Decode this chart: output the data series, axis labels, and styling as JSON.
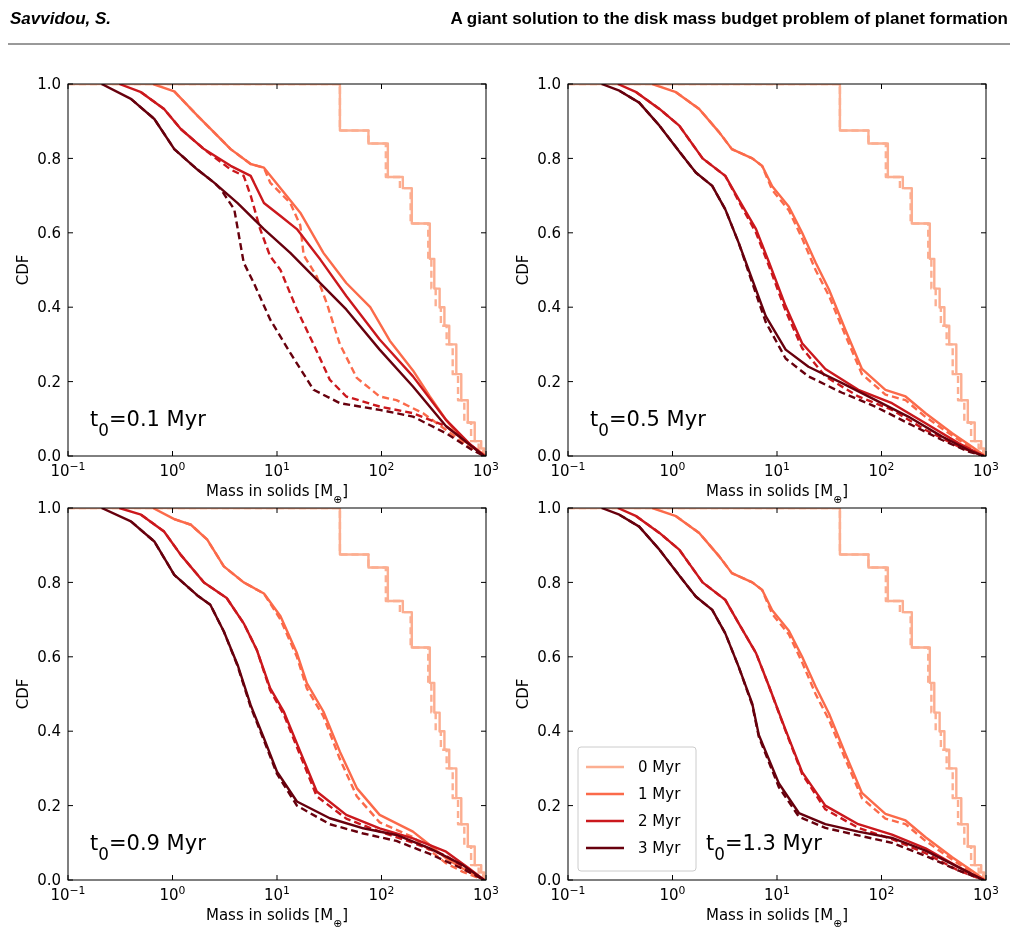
{
  "chart_data": [
    {
      "type": "other",
      "title": "A giant solution to the disk mass budget problem of planet formation",
      "subtitle": "Savvidou, S."
    },
    {
      "type": "line",
      "xlabel": "Mass in solids [M$_{⊕}$]",
      "ylabel": "CDF",
      "log": "x",
      "xlim": [
        0.1,
        1000
      ],
      "ylim": [
        0,
        1
      ],
      "xticks": [
        {
          "value": 0.1,
          "label": "10$^{−1}$"
        },
        {
          "value": 1,
          "label": "10$^{0}$"
        },
        {
          "value": 10,
          "label": "10$^{1}$"
        },
        {
          "value": 100,
          "label": "10$^{2}$"
        },
        {
          "value": 1000,
          "label": "10$^{3}$"
        }
      ],
      "yticks": [
        {
          "value": 0,
          "label": "0.0"
        },
        {
          "value": 0.2,
          "label": "0.2"
        },
        {
          "value": 0.4,
          "label": "0.4"
        },
        {
          "value": 0.6,
          "label": "0.6"
        },
        {
          "value": 0.8,
          "label": "0.8"
        },
        {
          "value": 1,
          "label": "1.0"
        }
      ],
      "annotations": [
        "t$_{0}$=0.1 Myr"
      ],
      "series": [
        {
          "type": "step",
          "color": "#fcae91",
          "line_style": "solid",
          "x": [
            0.1,
            40,
            75,
            115,
            160,
            195,
            290,
            320,
            360,
            400,
            445,
            520,
            580,
            670,
            780,
            900,
            960
          ],
          "values": [
            1,
            0.875,
            0.84,
            0.75,
            0.72,
            0.625,
            0.53,
            0.45,
            0.4,
            0.35,
            0.3,
            0.22,
            0.15,
            0.09,
            0.04,
            0.02,
            0
          ]
        },
        {
          "type": "step",
          "color": "#fcae91",
          "line_style": "dashed",
          "x": [
            0.1,
            40,
            75,
            110,
            150,
            190,
            280,
            300,
            330,
            370,
            420,
            480,
            540,
            620,
            720,
            850,
            940
          ],
          "values": [
            1,
            0.875,
            0.84,
            0.75,
            0.72,
            0.625,
            0.53,
            0.45,
            0.4,
            0.35,
            0.3,
            0.22,
            0.15,
            0.09,
            0.04,
            0.02,
            0
          ]
        },
        {
          "color": "#fb6a4a",
          "line_style": "solid",
          "x": [
            0.65,
            1.04,
            1.73,
            2.5,
            3.6,
            5.6,
            7.5,
            10.8,
            16.7,
            27.8,
            46,
            78,
            120,
            200,
            290,
            415,
            600,
            930,
            1000
          ],
          "values": [
            1,
            0.98,
            0.915,
            0.87,
            0.825,
            0.785,
            0.775,
            0.72,
            0.654,
            0.546,
            0.465,
            0.4,
            0.31,
            0.23,
            0.16,
            0.097,
            0.043,
            0.007,
            0
          ]
        },
        {
          "color": "#fb6a4a",
          "line_style": "dashed",
          "x": [
            1.04,
            1.73,
            2.5,
            3.6,
            5.6,
            7.5,
            8.6,
            13.4,
            16.7,
            18,
            24,
            30,
            40,
            58,
            96,
            139,
            250,
            415,
            690,
            960
          ],
          "values": [
            0.98,
            0.915,
            0.87,
            0.825,
            0.785,
            0.775,
            0.735,
            0.68,
            0.62,
            0.54,
            0.483,
            0.41,
            0.3,
            0.21,
            0.16,
            0.15,
            0.115,
            0.07,
            0.025,
            0
          ]
        },
        {
          "color": "#cb181d",
          "line_style": "solid",
          "x": [
            0.31,
            0.5,
            0.83,
            1.2,
            2.0,
            3.6,
            5.6,
            7.5,
            10.8,
            15.5,
            26,
            46,
            96,
            200,
            415,
            690,
            960
          ],
          "values": [
            1,
            0.978,
            0.933,
            0.879,
            0.825,
            0.78,
            0.753,
            0.68,
            0.645,
            0.61,
            0.528,
            0.43,
            0.313,
            0.214,
            0.097,
            0.034,
            0
          ]
        },
        {
          "color": "#cb181d",
          "line_style": "dashed",
          "x": [
            0.5,
            0.83,
            1.2,
            2.0,
            3.6,
            4.8,
            5.6,
            6.9,
            8.6,
            10.8,
            15.5,
            22.4,
            32,
            46,
            96,
            200,
            415,
            690,
            960
          ],
          "values": [
            0.978,
            0.933,
            0.879,
            0.825,
            0.77,
            0.753,
            0.7,
            0.61,
            0.537,
            0.5,
            0.394,
            0.3,
            0.205,
            0.16,
            0.133,
            0.115,
            0.08,
            0.034,
            0
          ]
        },
        {
          "color": "#67000d",
          "line_style": "solid",
          "x": [
            0.21,
            0.4,
            0.67,
            1.04,
            1.73,
            2.5,
            4.2,
            7.5,
            13.4,
            24,
            46,
            96,
            200,
            415,
            740,
            960
          ],
          "values": [
            1,
            0.96,
            0.906,
            0.825,
            0.77,
            0.735,
            0.68,
            0.61,
            0.546,
            0.474,
            0.394,
            0.286,
            0.187,
            0.08,
            0.025,
            0
          ]
        },
        {
          "color": "#67000d",
          "line_style": "dashed",
          "x": [
            0.4,
            0.67,
            1.04,
            1.73,
            2.5,
            2.9,
            3.9,
            4.8,
            6.0,
            8.6,
            13.4,
            22.4,
            40,
            96,
            200,
            415,
            740,
            960
          ],
          "values": [
            0.96,
            0.906,
            0.825,
            0.77,
            0.735,
            0.717,
            0.663,
            0.52,
            0.465,
            0.367,
            0.277,
            0.178,
            0.142,
            0.124,
            0.106,
            0.061,
            0.016,
            0
          ]
        }
      ]
    },
    {
      "type": "line",
      "xlabel": "Mass in solids [M$_{⊕}$]",
      "ylabel": "CDF",
      "log": "x",
      "xlim": [
        0.1,
        1000
      ],
      "ylim": [
        0,
        1
      ],
      "xticks": [
        {
          "value": 0.1,
          "label": "10$^{−1}$"
        },
        {
          "value": 1,
          "label": "10$^{0}$"
        },
        {
          "value": 10,
          "label": "10$^{1}$"
        },
        {
          "value": 100,
          "label": "10$^{2}$"
        },
        {
          "value": 1000,
          "label": "10$^{3}$"
        }
      ],
      "yticks": [
        {
          "value": 0,
          "label": "0.0"
        },
        {
          "value": 0.2,
          "label": "0.2"
        },
        {
          "value": 0.4,
          "label": "0.4"
        },
        {
          "value": 0.6,
          "label": "0.6"
        },
        {
          "value": 0.8,
          "label": "0.8"
        },
        {
          "value": 1,
          "label": "1.0"
        }
      ],
      "annotations": [
        "t$_{0}$=0.5 Myr"
      ],
      "series": [
        {
          "type": "step",
          "color": "#fcae91",
          "line_style": "solid",
          "x": [
            0.1,
            40,
            75,
            115,
            160,
            195,
            290,
            320,
            360,
            400,
            445,
            520,
            580,
            670,
            780,
            900,
            960
          ],
          "values": [
            1,
            0.875,
            0.84,
            0.75,
            0.72,
            0.625,
            0.53,
            0.45,
            0.4,
            0.35,
            0.3,
            0.22,
            0.15,
            0.09,
            0.04,
            0.02,
            0
          ]
        },
        {
          "type": "step",
          "color": "#fcae91",
          "line_style": "dashed",
          "x": [
            0.1,
            40,
            75,
            110,
            150,
            190,
            280,
            300,
            330,
            370,
            420,
            480,
            540,
            620,
            720,
            850,
            940
          ],
          "values": [
            1,
            0.875,
            0.84,
            0.75,
            0.72,
            0.625,
            0.53,
            0.45,
            0.4,
            0.35,
            0.3,
            0.22,
            0.15,
            0.09,
            0.04,
            0.02,
            0
          ]
        },
        {
          "color": "#fb6a4a",
          "line_style": "solid",
          "x": [
            0.64,
            1.08,
            1.8,
            2.8,
            3.7,
            5.8,
            7.2,
            9.0,
            13,
            17.4,
            23.4,
            31.5,
            45,
            65,
            109,
            170,
            264,
            475,
            735,
            980
          ],
          "values": [
            1,
            0.978,
            0.933,
            0.87,
            0.825,
            0.8,
            0.78,
            0.725,
            0.67,
            0.6,
            0.52,
            0.447,
            0.34,
            0.234,
            0.178,
            0.16,
            0.115,
            0.061,
            0.025,
            0
          ]
        },
        {
          "color": "#fb6a4a",
          "line_style": "dashed",
          "x": [
            1.08,
            1.8,
            2.8,
            3.7,
            5.8,
            7.2,
            9.0,
            13,
            17.4,
            23.4,
            31.5,
            45,
            65,
            109,
            170,
            264,
            475,
            735,
            980
          ],
          "values": [
            0.978,
            0.933,
            0.87,
            0.825,
            0.8,
            0.78,
            0.715,
            0.66,
            0.585,
            0.5,
            0.43,
            0.325,
            0.22,
            0.165,
            0.15,
            0.105,
            0.055,
            0.02,
            0
          ]
        },
        {
          "color": "#cb181d",
          "line_style": "solid",
          "x": [
            0.3,
            0.45,
            0.75,
            1.16,
            1.94,
            3.2,
            4.3,
            6.3,
            8.4,
            12.1,
            17.4,
            29,
            60,
            126,
            264,
            550,
            950
          ],
          "values": [
            1,
            0.978,
            0.933,
            0.888,
            0.8,
            0.753,
            0.69,
            0.61,
            0.52,
            0.403,
            0.303,
            0.234,
            0.178,
            0.142,
            0.088,
            0.034,
            0
          ]
        },
        {
          "color": "#cb181d",
          "line_style": "dashed",
          "x": [
            0.45,
            0.75,
            1.16,
            1.94,
            3.2,
            4.3,
            6.3,
            8.4,
            12.1,
            17.4,
            29,
            60,
            126,
            264,
            550,
            950
          ],
          "values": [
            0.978,
            0.933,
            0.888,
            0.8,
            0.753,
            0.685,
            0.6,
            0.51,
            0.39,
            0.29,
            0.214,
            0.16,
            0.124,
            0.07,
            0.025,
            0
          ]
        },
        {
          "color": "#67000d",
          "line_style": "solid",
          "x": [
            0.21,
            0.31,
            0.48,
            0.75,
            1.18,
            1.67,
            2.4,
            3.2,
            4.3,
            5.8,
            7.8,
            12.1,
            20,
            42,
            87,
            180,
            380,
            680,
            950
          ],
          "values": [
            1,
            0.982,
            0.95,
            0.888,
            0.816,
            0.762,
            0.726,
            0.663,
            0.573,
            0.474,
            0.376,
            0.286,
            0.24,
            0.196,
            0.151,
            0.106,
            0.052,
            0.016,
            0
          ]
        },
        {
          "color": "#67000d",
          "line_style": "dashed",
          "x": [
            0.31,
            0.48,
            0.75,
            1.18,
            1.67,
            2.4,
            3.2,
            4.3,
            5.8,
            7.8,
            12.1,
            20,
            42,
            87,
            180,
            380,
            680,
            950
          ],
          "values": [
            0.982,
            0.95,
            0.888,
            0.816,
            0.762,
            0.726,
            0.663,
            0.573,
            0.465,
            0.36,
            0.262,
            0.214,
            0.17,
            0.133,
            0.088,
            0.043,
            0.012,
            0
          ]
        }
      ]
    },
    {
      "type": "line",
      "xlabel": "Mass in solids [M$_{⊕}$]",
      "ylabel": "CDF",
      "log": "x",
      "xlim": [
        0.1,
        1000
      ],
      "ylim": [
        0,
        1
      ],
      "xticks": [
        {
          "value": 0.1,
          "label": "10$^{−1}$"
        },
        {
          "value": 1,
          "label": "10$^{0}$"
        },
        {
          "value": 10,
          "label": "10$^{1}$"
        },
        {
          "value": 100,
          "label": "10$^{2}$"
        },
        {
          "value": 1000,
          "label": "10$^{3}$"
        }
      ],
      "yticks": [
        {
          "value": 0,
          "label": "0.0"
        },
        {
          "value": 0.2,
          "label": "0.2"
        },
        {
          "value": 0.4,
          "label": "0.4"
        },
        {
          "value": 0.6,
          "label": "0.6"
        },
        {
          "value": 0.8,
          "label": "0.8"
        },
        {
          "value": 1,
          "label": "1.0"
        }
      ],
      "annotations": [
        "t$_{0}$=0.9 Myr"
      ],
      "series": [
        {
          "type": "step",
          "color": "#fcae91",
          "line_style": "solid",
          "x": [
            0.1,
            40,
            75,
            115,
            160,
            195,
            290,
            320,
            360,
            400,
            445,
            520,
            580,
            670,
            780,
            900,
            960
          ],
          "values": [
            1,
            0.875,
            0.84,
            0.75,
            0.72,
            0.625,
            0.53,
            0.45,
            0.4,
            0.35,
            0.3,
            0.22,
            0.15,
            0.09,
            0.04,
            0.02,
            0
          ]
        },
        {
          "type": "step",
          "color": "#fcae91",
          "line_style": "dashed",
          "x": [
            0.1,
            40,
            75,
            110,
            150,
            190,
            280,
            300,
            330,
            370,
            420,
            480,
            540,
            620,
            720,
            850,
            940
          ],
          "values": [
            1,
            0.875,
            0.84,
            0.75,
            0.72,
            0.625,
            0.53,
            0.45,
            0.4,
            0.35,
            0.3,
            0.22,
            0.15,
            0.09,
            0.04,
            0.02,
            0
          ]
        },
        {
          "color": "#fb6a4a",
          "line_style": "solid",
          "x": [
            0.65,
            1.04,
            1.5,
            2.15,
            3.1,
            4.8,
            7.5,
            10.8,
            15.5,
            19.3,
            27.8,
            40,
            58,
            96,
            200,
            290,
            415,
            600,
            960
          ],
          "values": [
            1,
            0.97,
            0.955,
            0.915,
            0.843,
            0.8,
            0.77,
            0.709,
            0.61,
            0.529,
            0.453,
            0.345,
            0.247,
            0.175,
            0.13,
            0.094,
            0.058,
            0.031,
            0
          ]
        },
        {
          "color": "#fb6a4a",
          "line_style": "dashed",
          "x": [
            1.04,
            1.5,
            2.15,
            3.1,
            4.8,
            7.5,
            10.8,
            15.5,
            19.3,
            27.8,
            40,
            58,
            96,
            200,
            290,
            415,
            600,
            960
          ],
          "values": [
            0.97,
            0.955,
            0.915,
            0.843,
            0.8,
            0.77,
            0.7,
            0.6,
            0.515,
            0.44,
            0.325,
            0.225,
            0.155,
            0.115,
            0.08,
            0.045,
            0.022,
            0
          ]
        },
        {
          "color": "#cb181d",
          "line_style": "solid",
          "x": [
            0.31,
            0.5,
            0.83,
            1.2,
            2.0,
            3.3,
            4.8,
            6.4,
            8.6,
            11.6,
            16.7,
            24,
            46,
            96,
            200,
            415,
            690,
            960
          ],
          "values": [
            1,
            0.982,
            0.937,
            0.874,
            0.8,
            0.758,
            0.69,
            0.619,
            0.516,
            0.453,
            0.345,
            0.238,
            0.175,
            0.139,
            0.112,
            0.076,
            0.031,
            0
          ]
        },
        {
          "color": "#cb181d",
          "line_style": "dashed",
          "x": [
            0.5,
            0.83,
            1.2,
            2.0,
            3.3,
            4.8,
            6.4,
            8.6,
            11.6,
            16.7,
            24,
            46,
            96,
            200,
            415,
            690,
            960
          ],
          "values": [
            0.982,
            0.937,
            0.874,
            0.8,
            0.758,
            0.69,
            0.619,
            0.51,
            0.445,
            0.335,
            0.225,
            0.165,
            0.13,
            0.1,
            0.065,
            0.025,
            0
          ]
        },
        {
          "color": "#67000d",
          "line_style": "solid",
          "x": [
            0.21,
            0.4,
            0.67,
            1.04,
            1.73,
            2.3,
            3.1,
            4.2,
            5.6,
            7.5,
            10,
            15.5,
            32,
            67,
            139,
            290,
            600,
            960
          ],
          "values": [
            1,
            0.964,
            0.91,
            0.82,
            0.765,
            0.74,
            0.668,
            0.578,
            0.47,
            0.381,
            0.291,
            0.211,
            0.166,
            0.139,
            0.121,
            0.085,
            0.04,
            0
          ]
        },
        {
          "color": "#67000d",
          "line_style": "dashed",
          "x": [
            0.4,
            0.67,
            1.04,
            1.73,
            2.3,
            3.1,
            4.2,
            5.6,
            7.5,
            10,
            15.5,
            32,
            67,
            139,
            290,
            600,
            960
          ],
          "values": [
            0.964,
            0.91,
            0.82,
            0.765,
            0.74,
            0.668,
            0.575,
            0.465,
            0.375,
            0.285,
            0.2,
            0.15,
            0.125,
            0.105,
            0.07,
            0.03,
            0
          ]
        }
      ]
    },
    {
      "type": "line",
      "xlabel": "Mass in solids [M$_{⊕}$]",
      "ylabel": "CDF",
      "log": "x",
      "xlim": [
        0.1,
        1000
      ],
      "ylim": [
        0,
        1
      ],
      "legend": "bottom left",
      "xticks": [
        {
          "value": 0.1,
          "label": "10$^{−1}$"
        },
        {
          "value": 1,
          "label": "10$^{0}$"
        },
        {
          "value": 10,
          "label": "10$^{1}$"
        },
        {
          "value": 100,
          "label": "10$^{2}$"
        },
        {
          "value": 1000,
          "label": "10$^{3}$"
        }
      ],
      "yticks": [
        {
          "value": 0,
          "label": "0.0"
        },
        {
          "value": 0.2,
          "label": "0.2"
        },
        {
          "value": 0.4,
          "label": "0.4"
        },
        {
          "value": 0.6,
          "label": "0.6"
        },
        {
          "value": 0.8,
          "label": "0.8"
        },
        {
          "value": 1,
          "label": "1.0"
        }
      ],
      "annotations": [
        "t$_{0}$=1.3 Myr"
      ],
      "series": [
        {
          "name": "0 Myr",
          "type": "step",
          "color": "#fcae91",
          "line_style": "solid",
          "x": [
            0.1,
            40,
            75,
            115,
            160,
            195,
            290,
            320,
            360,
            400,
            445,
            520,
            580,
            670,
            780,
            900,
            960
          ],
          "values": [
            1,
            0.875,
            0.84,
            0.75,
            0.72,
            0.625,
            0.53,
            0.45,
            0.4,
            0.35,
            0.3,
            0.22,
            0.15,
            0.09,
            0.04,
            0.02,
            0
          ]
        },
        {
          "type": "step",
          "color": "#fcae91",
          "line_style": "dashed",
          "x": [
            0.1,
            40,
            75,
            110,
            150,
            190,
            280,
            300,
            330,
            370,
            420,
            480,
            540,
            620,
            720,
            850,
            940
          ],
          "values": [
            1,
            0.875,
            0.84,
            0.75,
            0.72,
            0.625,
            0.53,
            0.45,
            0.4,
            0.35,
            0.3,
            0.22,
            0.15,
            0.09,
            0.04,
            0.02,
            0
          ]
        },
        {
          "name": "1 Myr",
          "color": "#fb6a4a",
          "line_style": "solid",
          "x": [
            0.64,
            1.08,
            1.8,
            2.8,
            3.7,
            5.8,
            7.2,
            9.0,
            13,
            17.4,
            23.4,
            31.5,
            45,
            65,
            109,
            170,
            264,
            475,
            735,
            980
          ],
          "values": [
            1,
            0.978,
            0.933,
            0.87,
            0.825,
            0.8,
            0.78,
            0.725,
            0.67,
            0.6,
            0.52,
            0.447,
            0.34,
            0.234,
            0.178,
            0.16,
            0.115,
            0.061,
            0.025,
            0
          ]
        },
        {
          "color": "#fb6a4a",
          "line_style": "dashed",
          "x": [
            1.08,
            1.8,
            2.8,
            3.7,
            5.8,
            7.2,
            9.0,
            13,
            17.4,
            23.4,
            31.5,
            45,
            65,
            109,
            170,
            264,
            475,
            735,
            980
          ],
          "values": [
            0.978,
            0.933,
            0.87,
            0.825,
            0.8,
            0.78,
            0.715,
            0.66,
            0.585,
            0.5,
            0.43,
            0.325,
            0.22,
            0.165,
            0.15,
            0.105,
            0.055,
            0.02,
            0
          ]
        },
        {
          "name": "2 Myr",
          "color": "#cb181d",
          "line_style": "solid",
          "x": [
            0.3,
            0.45,
            0.75,
            1.16,
            1.94,
            3.2,
            4.3,
            6.3,
            8.4,
            12.1,
            17.4,
            29,
            60,
            126,
            264,
            550,
            950
          ],
          "values": [
            1,
            0.978,
            0.933,
            0.888,
            0.8,
            0.753,
            0.69,
            0.61,
            0.52,
            0.403,
            0.29,
            0.2,
            0.15,
            0.122,
            0.085,
            0.034,
            0
          ]
        },
        {
          "color": "#cb181d",
          "line_style": "dashed",
          "x": [
            0.45,
            0.75,
            1.16,
            1.94,
            3.2,
            4.3,
            6.3,
            8.4,
            12.1,
            17.4,
            29,
            60,
            126,
            264,
            550,
            950
          ],
          "values": [
            0.978,
            0.933,
            0.888,
            0.8,
            0.753,
            0.69,
            0.61,
            0.52,
            0.4,
            0.285,
            0.19,
            0.14,
            0.11,
            0.072,
            0.025,
            0
          ]
        },
        {
          "name": "3 Myr",
          "color": "#67000d",
          "line_style": "solid",
          "x": [
            0.21,
            0.31,
            0.48,
            0.75,
            1.18,
            1.67,
            2.4,
            3.2,
            4.3,
            5.8,
            6.7,
            10.4,
            16.2,
            29,
            60,
            126,
            264,
            550,
            950
          ],
          "values": [
            1,
            0.982,
            0.95,
            0.888,
            0.816,
            0.762,
            0.726,
            0.663,
            0.573,
            0.474,
            0.39,
            0.26,
            0.18,
            0.15,
            0.13,
            0.113,
            0.079,
            0.034,
            0
          ]
        },
        {
          "color": "#67000d",
          "line_style": "dashed",
          "x": [
            0.31,
            0.48,
            0.75,
            1.18,
            1.67,
            2.4,
            3.2,
            4.3,
            5.8,
            6.7,
            10.4,
            16.2,
            29,
            60,
            126,
            264,
            550,
            950
          ],
          "values": [
            0.982,
            0.95,
            0.888,
            0.816,
            0.762,
            0.726,
            0.663,
            0.573,
            0.47,
            0.385,
            0.25,
            0.17,
            0.14,
            0.12,
            0.1,
            0.065,
            0.025,
            0
          ]
        }
      ]
    }
  ]
}
